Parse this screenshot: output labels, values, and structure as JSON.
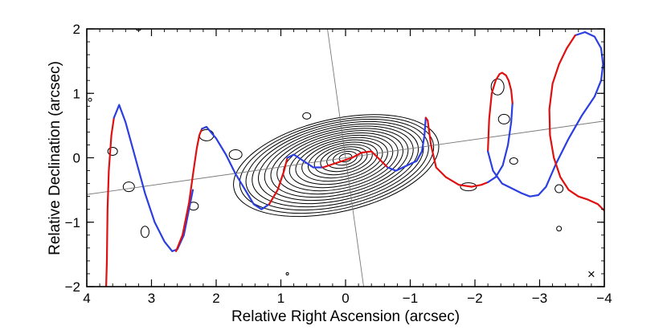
{
  "chart_data": {
    "type": "line",
    "title": "",
    "xlabel": "Relative Right Ascension (arcsec)",
    "ylabel": "Relative Declination (arcsec)",
    "xlim": [
      4,
      -4
    ],
    "ylim": [
      -2,
      2
    ],
    "x_ticks": [
      4,
      3,
      2,
      1,
      0,
      -1,
      -2,
      -3,
      -4
    ],
    "y_ticks": [
      2,
      1,
      0,
      -1,
      -2
    ],
    "x_tick_labels": [
      "4",
      "3",
      "2",
      "1",
      "0",
      "−1",
      "−2",
      "−3",
      "−4"
    ],
    "y_tick_labels": [
      "2",
      "1",
      "0",
      "−1",
      "−2"
    ],
    "grid": false,
    "legend": "none",
    "reference_lines": [
      {
        "x1": 0.28,
        "y1": 2.0,
        "x2": -0.28,
        "y2": -2.0,
        "color": "#7a7a7a"
      },
      {
        "x1": 4.0,
        "y1": -0.57,
        "x2": -4.0,
        "y2": 0.57,
        "color": "#7a7a7a"
      }
    ],
    "contour_centers": [
      {
        "x": 0.0,
        "y": 0.0
      }
    ],
    "marker_beam": {
      "x": -3.8,
      "y": -1.8,
      "symbol": "×"
    },
    "series": [
      {
        "color": "#e01010",
        "x": [
          3.7,
          3.69,
          3.68,
          3.66,
          3.62,
          3.58
        ],
        "y": [
          -2.0,
          -1.6,
          -0.8,
          -0.2,
          0.35,
          0.62
        ]
      },
      {
        "color": "#2b3ee0",
        "x": [
          3.58,
          3.5,
          3.4,
          3.25,
          3.1,
          2.95,
          2.8,
          2.68,
          2.6,
          2.5,
          2.42,
          2.36
        ],
        "y": [
          0.62,
          0.82,
          0.55,
          0.0,
          -0.55,
          -1.0,
          -1.3,
          -1.45,
          -1.42,
          -1.2,
          -0.8,
          -0.5
        ]
      },
      {
        "color": "#e01010",
        "x": [
          2.62,
          2.52,
          2.42,
          2.35,
          2.3,
          2.26,
          2.22
        ],
        "y": [
          -1.45,
          -1.2,
          -0.7,
          -0.2,
          0.15,
          0.35,
          0.45
        ]
      },
      {
        "color": "#2b3ee0",
        "x": [
          2.22,
          2.15,
          2.0,
          1.85,
          1.7,
          1.55,
          1.42,
          1.3,
          1.18
        ],
        "y": [
          0.45,
          0.48,
          0.3,
          0.05,
          -0.25,
          -0.5,
          -0.72,
          -0.8,
          -0.72
        ]
      },
      {
        "color": "#e01010",
        "x": [
          1.18,
          1.05,
          0.95,
          0.9
        ],
        "y": [
          -0.72,
          -0.5,
          -0.2,
          0.0
        ]
      },
      {
        "color": "#2b3ee0",
        "x": [
          0.9,
          0.8,
          0.65,
          0.5,
          0.35
        ],
        "y": [
          0.0,
          0.05,
          -0.05,
          -0.15,
          -0.15
        ]
      },
      {
        "color": "#e01010",
        "x": [
          0.35,
          0.2,
          0.05,
          -0.1,
          -0.25,
          -0.4,
          -0.55,
          -0.65
        ],
        "y": [
          -0.15,
          -0.1,
          -0.05,
          0.0,
          0.08,
          0.1,
          -0.05,
          -0.15
        ]
      },
      {
        "color": "#2b3ee0",
        "x": [
          -0.65,
          -0.78,
          -0.95,
          -1.1,
          -1.18,
          -1.22,
          -1.24
        ],
        "y": [
          -0.15,
          -0.2,
          -0.12,
          -0.05,
          0.1,
          0.35,
          0.62
        ]
      },
      {
        "color": "#e01010",
        "x": [
          -1.24,
          -1.27,
          -1.32,
          -1.4,
          -1.55,
          -1.75,
          -1.95,
          -2.1,
          -2.2
        ],
        "y": [
          0.62,
          0.58,
          0.2,
          -0.15,
          -0.3,
          -0.42,
          -0.45,
          -0.42,
          -0.38
        ]
      },
      {
        "color": "#2b3ee0",
        "x": [
          -2.2,
          -2.32,
          -2.43,
          -2.51,
          -2.56,
          -2.58
        ],
        "y": [
          -0.38,
          -0.3,
          -0.12,
          0.2,
          0.55,
          0.85
        ]
      },
      {
        "color": "#e01010",
        "x": [
          -2.58,
          -2.56,
          -2.52,
          -2.48,
          -2.42,
          -2.38,
          -2.32,
          -2.26,
          -2.22,
          -2.2
        ],
        "y": [
          0.85,
          1.05,
          1.2,
          1.28,
          1.32,
          1.3,
          1.2,
          1.0,
          0.6,
          0.1
        ]
      },
      {
        "color": "#2b3ee0",
        "x": [
          -2.2,
          -2.28,
          -2.42,
          -2.58,
          -2.72,
          -2.85,
          -2.98,
          -3.1,
          -3.25,
          -3.45,
          -3.65,
          -3.85,
          -3.95,
          -3.98,
          -3.95,
          -3.85,
          -3.7,
          -3.55
        ],
        "y": [
          0.1,
          -0.2,
          -0.4,
          -0.48,
          -0.55,
          -0.6,
          -0.58,
          -0.45,
          -0.1,
          0.3,
          0.65,
          0.95,
          1.2,
          1.45,
          1.7,
          1.88,
          1.95,
          1.9
        ]
      },
      {
        "color": "#e01010",
        "x": [
          -3.55,
          -3.42,
          -3.3,
          -3.2,
          -3.15,
          -3.16,
          -3.22,
          -3.32,
          -3.45,
          -3.6,
          -3.75,
          -3.9,
          -4.0
        ],
        "y": [
          1.9,
          1.7,
          1.45,
          1.15,
          0.75,
          0.35,
          0.0,
          -0.3,
          -0.5,
          -0.6,
          -0.65,
          -0.72,
          -0.82
        ]
      }
    ]
  }
}
